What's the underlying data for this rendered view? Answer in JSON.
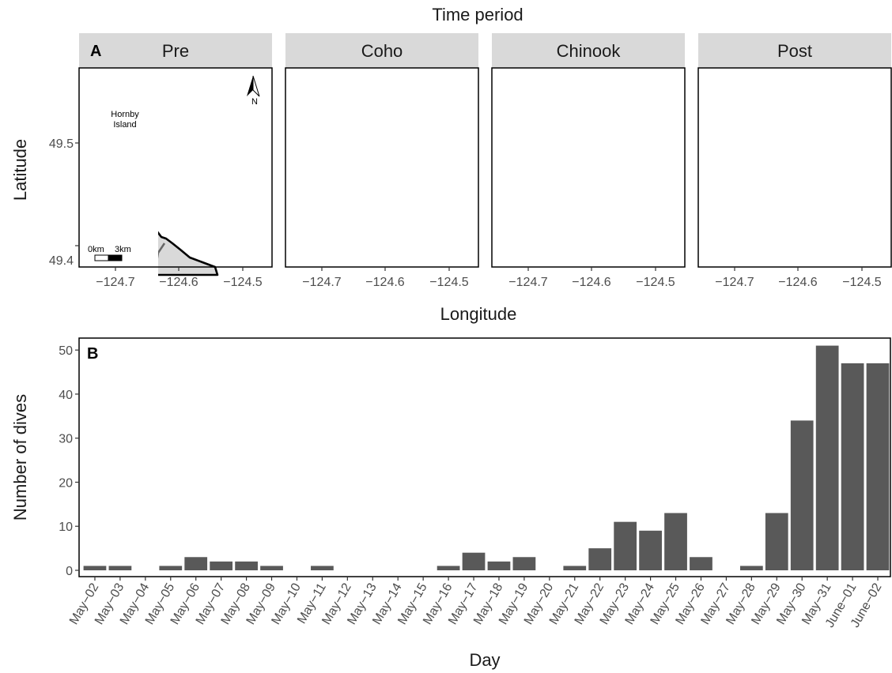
{
  "panel_a": {
    "tag": "A",
    "top_title": "Time period",
    "facets": [
      "Pre",
      "Coho",
      "Chinook",
      "Post"
    ],
    "ylabel": "Latitude",
    "xlabel": "Longitude",
    "y_ticks": [
      "49.5",
      "49.4"
    ],
    "x_ticks": [
      "−124.7",
      "−124.6",
      "−124.5"
    ],
    "island_label_line1": "Hornby",
    "island_label_line2": "Island",
    "north_label": "N",
    "scale_label_0": "0km",
    "scale_label_3": "3km",
    "colors": {
      "land": "#d9d9d9",
      "hotspot_core": "#e8471b",
      "hotspot_mid": "#f0c419",
      "hotspot_outer": "#8fd16b"
    }
  },
  "chart_data": {
    "type": "bar",
    "tag": "B",
    "title": "",
    "xlabel": "Day",
    "ylabel": "Number of dives",
    "ylim": [
      0,
      52
    ],
    "y_ticks": [
      "0",
      "10",
      "20",
      "30",
      "40",
      "50"
    ],
    "categories": [
      "May−02",
      "May−03",
      "May−04",
      "May−05",
      "May−06",
      "May−07",
      "May−08",
      "May−09",
      "May−10",
      "May−11",
      "May−12",
      "May−13",
      "May−14",
      "May−15",
      "May−16",
      "May−17",
      "May−18",
      "May−19",
      "May−20",
      "May−21",
      "May−22",
      "May−23",
      "May−24",
      "May−25",
      "May−26",
      "May−27",
      "May−28",
      "May−29",
      "May−30",
      "May−31",
      "June−01",
      "June−02"
    ],
    "values": [
      1,
      1,
      0,
      1,
      3,
      2,
      2,
      1,
      0,
      1,
      0,
      0,
      0,
      0,
      1,
      4,
      2,
      3,
      0,
      1,
      5,
      11,
      9,
      13,
      3,
      0,
      1,
      13,
      34,
      51,
      47,
      47
    ],
    "bar_color": "#595959"
  }
}
